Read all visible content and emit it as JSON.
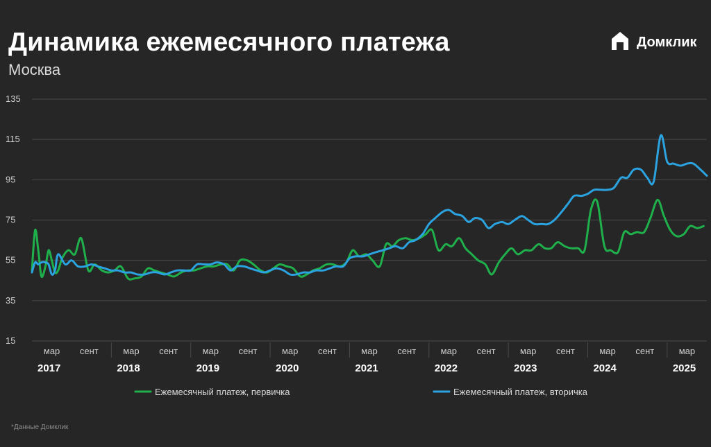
{
  "header": {
    "title": "Динамика ежемесячного платежа",
    "subtitle": "Москва",
    "brand": "Домклик"
  },
  "footnote": "*Данные Домклик",
  "colors": {
    "background": "#262626",
    "primary": "#1fb04c",
    "secondary": "#2aa3e0",
    "grid": "#4a4a4a"
  },
  "chart_data": {
    "type": "line",
    "title": "Динамика ежемесячного платежа",
    "subtitle": "Москва",
    "ylim": [
      15,
      135
    ],
    "yticks": [
      15,
      35,
      55,
      75,
      95,
      115,
      135
    ],
    "xlim": [
      2017.0,
      2025.5
    ],
    "years": [
      "2017",
      "2018",
      "2019",
      "2020",
      "2021",
      "2022",
      "2023",
      "2024",
      "2025"
    ],
    "month_labels": [
      "мар",
      "сент"
    ],
    "grid": "horizontal",
    "legend_position": "bottom",
    "series": [
      {
        "name": "Ежемесячный платеж, первичка",
        "color": "#1fb04c",
        "points": [
          [
            2017.0,
            50
          ],
          [
            2017.04,
            70
          ],
          [
            2017.08,
            60
          ],
          [
            2017.12,
            47
          ],
          [
            2017.17,
            52
          ],
          [
            2017.21,
            60
          ],
          [
            2017.25,
            55
          ],
          [
            2017.29,
            49
          ],
          [
            2017.33,
            50
          ],
          [
            2017.38,
            56
          ],
          [
            2017.46,
            60
          ],
          [
            2017.54,
            58
          ],
          [
            2017.62,
            66
          ],
          [
            2017.71,
            50
          ],
          [
            2017.79,
            53
          ],
          [
            2017.88,
            50
          ],
          [
            2017.96,
            49
          ],
          [
            2018.04,
            50
          ],
          [
            2018.12,
            52
          ],
          [
            2018.21,
            46
          ],
          [
            2018.29,
            46
          ],
          [
            2018.38,
            47
          ],
          [
            2018.46,
            51
          ],
          [
            2018.54,
            50
          ],
          [
            2018.62,
            49
          ],
          [
            2018.71,
            48
          ],
          [
            2018.79,
            47
          ],
          [
            2018.88,
            49
          ],
          [
            2018.96,
            50
          ],
          [
            2019.04,
            50
          ],
          [
            2019.12,
            51
          ],
          [
            2019.21,
            52
          ],
          [
            2019.29,
            52
          ],
          [
            2019.38,
            53
          ],
          [
            2019.46,
            53
          ],
          [
            2019.54,
            50
          ],
          [
            2019.62,
            55
          ],
          [
            2019.71,
            55
          ],
          [
            2019.79,
            53
          ],
          [
            2019.88,
            50
          ],
          [
            2019.96,
            49
          ],
          [
            2020.04,
            51
          ],
          [
            2020.12,
            53
          ],
          [
            2020.21,
            52
          ],
          [
            2020.29,
            51
          ],
          [
            2020.38,
            47
          ],
          [
            2020.46,
            48
          ],
          [
            2020.54,
            50
          ],
          [
            2020.62,
            51
          ],
          [
            2020.71,
            53
          ],
          [
            2020.79,
            53
          ],
          [
            2020.88,
            52
          ],
          [
            2020.96,
            54
          ],
          [
            2021.04,
            60
          ],
          [
            2021.12,
            57
          ],
          [
            2021.21,
            58
          ],
          [
            2021.29,
            55
          ],
          [
            2021.38,
            52
          ],
          [
            2021.46,
            63
          ],
          [
            2021.54,
            62
          ],
          [
            2021.62,
            65
          ],
          [
            2021.71,
            66
          ],
          [
            2021.79,
            65
          ],
          [
            2021.88,
            66
          ],
          [
            2021.96,
            68
          ],
          [
            2022.04,
            70
          ],
          [
            2022.12,
            60
          ],
          [
            2022.21,
            63
          ],
          [
            2022.29,
            62
          ],
          [
            2022.38,
            66
          ],
          [
            2022.46,
            61
          ],
          [
            2022.54,
            58
          ],
          [
            2022.62,
            55
          ],
          [
            2022.71,
            53
          ],
          [
            2022.79,
            48
          ],
          [
            2022.88,
            54
          ],
          [
            2022.96,
            58
          ],
          [
            2023.04,
            61
          ],
          [
            2023.12,
            58
          ],
          [
            2023.21,
            60
          ],
          [
            2023.29,
            60
          ],
          [
            2023.38,
            63
          ],
          [
            2023.46,
            61
          ],
          [
            2023.54,
            61
          ],
          [
            2023.62,
            64
          ],
          [
            2023.71,
            62
          ],
          [
            2023.79,
            61
          ],
          [
            2023.88,
            61
          ],
          [
            2023.96,
            60
          ],
          [
            2024.04,
            80
          ],
          [
            2024.12,
            84
          ],
          [
            2024.21,
            62
          ],
          [
            2024.29,
            60
          ],
          [
            2024.38,
            59
          ],
          [
            2024.46,
            69
          ],
          [
            2024.54,
            68
          ],
          [
            2024.62,
            69
          ],
          [
            2024.71,
            69
          ],
          [
            2024.79,
            76
          ],
          [
            2024.88,
            85
          ],
          [
            2024.96,
            77
          ],
          [
            2025.04,
            70
          ],
          [
            2025.12,
            67
          ],
          [
            2025.21,
            68
          ],
          [
            2025.29,
            72
          ],
          [
            2025.38,
            71
          ],
          [
            2025.46,
            72
          ]
        ]
      },
      {
        "name": "Ежемесячный платеж, вторичка",
        "color": "#2aa3e0",
        "points": [
          [
            2017.0,
            49
          ],
          [
            2017.04,
            54
          ],
          [
            2017.08,
            53
          ],
          [
            2017.12,
            54
          ],
          [
            2017.17,
            54
          ],
          [
            2017.21,
            53
          ],
          [
            2017.25,
            48
          ],
          [
            2017.29,
            50
          ],
          [
            2017.33,
            58
          ],
          [
            2017.42,
            53
          ],
          [
            2017.5,
            55
          ],
          [
            2017.58,
            52
          ],
          [
            2017.67,
            52
          ],
          [
            2017.75,
            53
          ],
          [
            2017.83,
            52
          ],
          [
            2017.92,
            51
          ],
          [
            2018.0,
            50
          ],
          [
            2018.08,
            50
          ],
          [
            2018.17,
            49
          ],
          [
            2018.25,
            49
          ],
          [
            2018.33,
            48
          ],
          [
            2018.42,
            48
          ],
          [
            2018.5,
            49
          ],
          [
            2018.58,
            49
          ],
          [
            2018.67,
            48
          ],
          [
            2018.75,
            49
          ],
          [
            2018.83,
            50
          ],
          [
            2018.92,
            50
          ],
          [
            2019.0,
            50
          ],
          [
            2019.08,
            53
          ],
          [
            2019.17,
            53
          ],
          [
            2019.25,
            53
          ],
          [
            2019.33,
            54
          ],
          [
            2019.42,
            53
          ],
          [
            2019.5,
            50
          ],
          [
            2019.58,
            52
          ],
          [
            2019.67,
            52
          ],
          [
            2019.75,
            51
          ],
          [
            2019.83,
            50
          ],
          [
            2019.92,
            49
          ],
          [
            2020.0,
            50
          ],
          [
            2020.08,
            51
          ],
          [
            2020.17,
            50
          ],
          [
            2020.25,
            48
          ],
          [
            2020.33,
            48
          ],
          [
            2020.42,
            49
          ],
          [
            2020.5,
            49
          ],
          [
            2020.58,
            50
          ],
          [
            2020.67,
            50
          ],
          [
            2020.75,
            51
          ],
          [
            2020.83,
            52
          ],
          [
            2020.92,
            52
          ],
          [
            2021.0,
            56
          ],
          [
            2021.08,
            57
          ],
          [
            2021.17,
            57
          ],
          [
            2021.25,
            58
          ],
          [
            2021.33,
            59
          ],
          [
            2021.42,
            60
          ],
          [
            2021.5,
            61
          ],
          [
            2021.58,
            62
          ],
          [
            2021.67,
            61
          ],
          [
            2021.75,
            64
          ],
          [
            2021.83,
            65
          ],
          [
            2021.92,
            68
          ],
          [
            2022.0,
            73
          ],
          [
            2022.08,
            76
          ],
          [
            2022.17,
            79
          ],
          [
            2022.25,
            80
          ],
          [
            2022.33,
            78
          ],
          [
            2022.42,
            77
          ],
          [
            2022.5,
            74
          ],
          [
            2022.58,
            76
          ],
          [
            2022.67,
            75
          ],
          [
            2022.75,
            71
          ],
          [
            2022.83,
            73
          ],
          [
            2022.92,
            74
          ],
          [
            2023.0,
            73
          ],
          [
            2023.08,
            75
          ],
          [
            2023.17,
            77
          ],
          [
            2023.25,
            75
          ],
          [
            2023.33,
            73
          ],
          [
            2023.42,
            73
          ],
          [
            2023.5,
            73
          ],
          [
            2023.58,
            75
          ],
          [
            2023.67,
            79
          ],
          [
            2023.75,
            83
          ],
          [
            2023.83,
            87
          ],
          [
            2023.92,
            87
          ],
          [
            2024.0,
            88
          ],
          [
            2024.08,
            90
          ],
          [
            2024.17,
            90
          ],
          [
            2024.25,
            90
          ],
          [
            2024.33,
            91
          ],
          [
            2024.42,
            96
          ],
          [
            2024.5,
            96
          ],
          [
            2024.58,
            100
          ],
          [
            2024.67,
            100
          ],
          [
            2024.75,
            96
          ],
          [
            2024.83,
            94
          ],
          [
            2024.92,
            117
          ],
          [
            2025.0,
            104
          ],
          [
            2025.08,
            103
          ],
          [
            2025.17,
            102
          ],
          [
            2025.25,
            103
          ],
          [
            2025.33,
            103
          ],
          [
            2025.42,
            100
          ],
          [
            2025.5,
            97
          ]
        ]
      }
    ]
  }
}
